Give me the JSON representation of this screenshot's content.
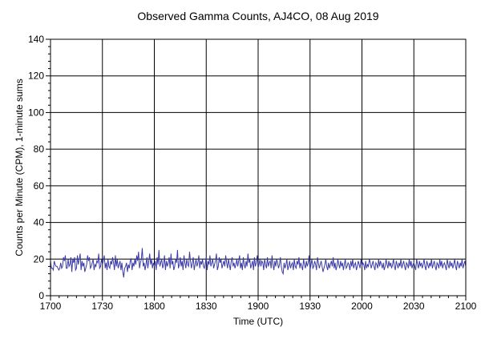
{
  "chart_data": {
    "type": "line",
    "title": "Observed Gamma Counts, AJ4CO, 08 Aug 2019",
    "xlabel": "Time (UTC)",
    "ylabel": "Counts per Minute (CPM), 1-minute sums",
    "xlim": [
      "1700",
      "2100"
    ],
    "ylim": [
      0,
      140
    ],
    "xticks": [
      "1700",
      "1730",
      "1800",
      "1830",
      "1900",
      "1930",
      "2000",
      "2030",
      "2100"
    ],
    "yticks": [
      0,
      20,
      40,
      60,
      80,
      100,
      120,
      140
    ],
    "grid": true,
    "legend": "none",
    "line_color": "#3b3ba8",
    "x_interval_minutes": 1,
    "series": [
      {
        "values": [
          19,
          15,
          15,
          14,
          19,
          17,
          16,
          16,
          15,
          14,
          15,
          18,
          15,
          16,
          21,
          19,
          22,
          15,
          15,
          20,
          16,
          17,
          21,
          13,
          20,
          18,
          21,
          14,
          15,
          22,
          17,
          20,
          23,
          14,
          19,
          16,
          18,
          13,
          15,
          17,
          22,
          19,
          21,
          15,
          16,
          18,
          20,
          14,
          17,
          16,
          19,
          18,
          23,
          15,
          16,
          20,
          17,
          19,
          22,
          15,
          18,
          14,
          20,
          16,
          15,
          19,
          17,
          21,
          18,
          14,
          22,
          16,
          20,
          15,
          17,
          19,
          14,
          18,
          13,
          10,
          15,
          16,
          18,
          13,
          17,
          15,
          19,
          20,
          14,
          18,
          16,
          20,
          17,
          22,
          19,
          24,
          15,
          18,
          20,
          26,
          16,
          18,
          14,
          17,
          21,
          15,
          19,
          23,
          17,
          20,
          15,
          18,
          16,
          19,
          14,
          21,
          17,
          25,
          16,
          18,
          20,
          15,
          17,
          22,
          14,
          19,
          16,
          18,
          21,
          15,
          23,
          17,
          19,
          14,
          16,
          20,
          18,
          25,
          15,
          17,
          21,
          16,
          19,
          14,
          22,
          18,
          15,
          20,
          17,
          16,
          24,
          19,
          15,
          18,
          21,
          14,
          17,
          20,
          16,
          18,
          22,
          15,
          19,
          17,
          20,
          16,
          15,
          18,
          21,
          14,
          19,
          17,
          22,
          16,
          18,
          20,
          15,
          17,
          19,
          23,
          14,
          16,
          21,
          18,
          20,
          15,
          17,
          19,
          16,
          22,
          18,
          15,
          20,
          17,
          14,
          19,
          21,
          16,
          18,
          15,
          17,
          20,
          16,
          19,
          22,
          15,
          18,
          14,
          21,
          17,
          15,
          19,
          16,
          23,
          18,
          20,
          15,
          17,
          19,
          14,
          21,
          16,
          18,
          22,
          15,
          17,
          20,
          16,
          19,
          18,
          14,
          20,
          17,
          15,
          21,
          16,
          18,
          19,
          15,
          22,
          17,
          14,
          19,
          16,
          20,
          18,
          15,
          17,
          21,
          16,
          13,
          12,
          18,
          15,
          17,
          20,
          14,
          16,
          19,
          15,
          17,
          18,
          14,
          20,
          16,
          15,
          19,
          17,
          21,
          15,
          18,
          16,
          14,
          20,
          17,
          15,
          19,
          16,
          18,
          22,
          14,
          17,
          20,
          15,
          16,
          19,
          17,
          14,
          21,
          18,
          15,
          17,
          19,
          16,
          13,
          15,
          17,
          20,
          16,
          14,
          18,
          15,
          17,
          19,
          16,
          21,
          15,
          18,
          14,
          16,
          20,
          17,
          15,
          19,
          16,
          18,
          14,
          17,
          20,
          15,
          16,
          18,
          17,
          14,
          19,
          16,
          20,
          15,
          17,
          18,
          14,
          16,
          19,
          17,
          15,
          20,
          16,
          18,
          17,
          14,
          19,
          15,
          17,
          16,
          20,
          18,
          15,
          17,
          19,
          16,
          14,
          18,
          17,
          15,
          20,
          16,
          19,
          17,
          15,
          18,
          14,
          16,
          20,
          17,
          15,
          19,
          16,
          18,
          15,
          17,
          20,
          16,
          14,
          19,
          17,
          15,
          18,
          16,
          20,
          15,
          17,
          19,
          16,
          14,
          18,
          17,
          15,
          20,
          16,
          19,
          15,
          17,
          18,
          16,
          14,
          20,
          17,
          15,
          19,
          16,
          18,
          15,
          17,
          20,
          16,
          14,
          19,
          17,
          15,
          18,
          16,
          20,
          15,
          17,
          19,
          16,
          14,
          18,
          17,
          15,
          20,
          16,
          19,
          15,
          17,
          18,
          16,
          14,
          20,
          17,
          15,
          19,
          16,
          18,
          15,
          17,
          20,
          16,
          14,
          19,
          17,
          15,
          18,
          16,
          20,
          15,
          17,
          19,
          16
        ]
      }
    ]
  }
}
